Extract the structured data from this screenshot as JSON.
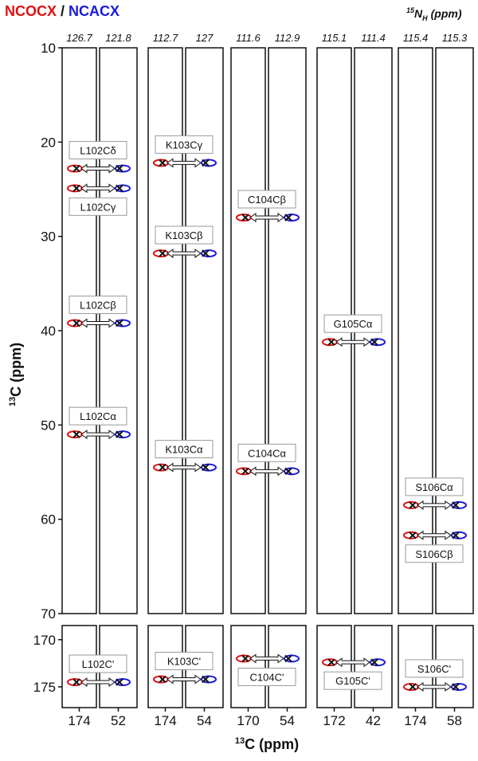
{
  "chart_data": {
    "type": "strip",
    "series": [
      {
        "name": "NCOCX",
        "color": "#e01010"
      },
      {
        "name": "NCACX",
        "color": "#1a1adc"
      }
    ],
    "title_separator": "/",
    "n_label": {
      "sup": "15",
      "main": "N",
      "sub": "H",
      "unit": "(ppm)"
    },
    "ylabel": {
      "sup": "13",
      "main": "C (ppm)"
    },
    "xlabel": {
      "sup": "13",
      "main": "C (ppm)"
    },
    "ylim": [
      10,
      70
    ],
    "yticks": [
      10,
      20,
      30,
      40,
      50,
      60,
      70
    ],
    "y2lim": [
      168.5,
      177.2
    ],
    "y2ticks": [
      170,
      175
    ],
    "residues": [
      {
        "n_shifts": [
          126.7,
          121.8
        ],
        "xticks": [
          174,
          52
        ],
        "peaks": [
          {
            "label": "L102Cδ",
            "shift": 22.8
          },
          {
            "label": "L102Cγ",
            "shift": 24.9
          },
          {
            "label": "L102Cβ",
            "shift": 39.2
          },
          {
            "label": "L102Cα",
            "shift": 51.0
          },
          {
            "label": "L102C'",
            "shift": 174.5
          }
        ]
      },
      {
        "n_shifts": [
          112.7,
          127.0
        ],
        "xticks": [
          174,
          54
        ],
        "peaks": [
          {
            "label": "K103Cγ",
            "shift": 22.2
          },
          {
            "label": "K103Cβ",
            "shift": 31.8
          },
          {
            "label": "K103Cα",
            "shift": 54.5
          },
          {
            "label": "K103C'",
            "shift": 174.2
          }
        ]
      },
      {
        "n_shifts": [
          111.6,
          112.9
        ],
        "xticks": [
          170,
          54
        ],
        "peaks": [
          {
            "label": "C104Cβ",
            "shift": 28.0
          },
          {
            "label": "C104Cα",
            "shift": 54.9
          },
          {
            "label": "C104C'",
            "shift": 172.0
          }
        ]
      },
      {
        "n_shifts": [
          115.1,
          111.4
        ],
        "xticks": [
          172,
          42
        ],
        "peaks": [
          {
            "label": "G105Cα",
            "shift": 41.2
          },
          {
            "label": "G105C'",
            "shift": 172.4
          }
        ]
      },
      {
        "n_shifts": [
          115.4,
          115.3
        ],
        "xticks": [
          174,
          58
        ],
        "peaks": [
          {
            "label": "S106Cα",
            "shift": 58.5
          },
          {
            "label": "S106Cβ",
            "shift": 61.7
          },
          {
            "label": "S106C'",
            "shift": 175.0
          }
        ]
      }
    ]
  }
}
